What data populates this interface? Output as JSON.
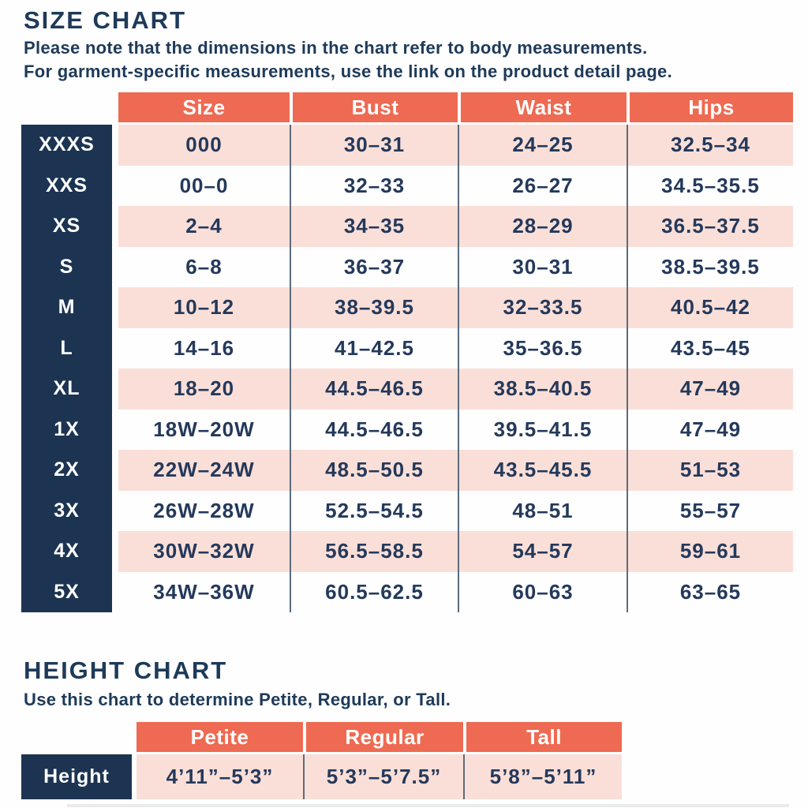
{
  "colors": {
    "navy": "#1C3452",
    "coral": "#EE6A52",
    "pink": "#FADFD8",
    "text_navy": "#24395B",
    "separator": "#5D6B7C"
  },
  "size_chart": {
    "title": "SIZE CHART",
    "subtitle_line1": "Please note that the dimensions in the chart refer to body measurements.",
    "subtitle_line2": "For garment-specific measurements, use the link on the product detail page.",
    "columns": [
      "Size",
      "Bust",
      "Waist",
      "Hips"
    ],
    "rows": [
      {
        "label": "XXXS",
        "values": [
          "000",
          "30–31",
          "24–25",
          "32.5–34"
        ]
      },
      {
        "label": "XXS",
        "values": [
          "00–0",
          "32–33",
          "26–27",
          "34.5–35.5"
        ]
      },
      {
        "label": "XS",
        "values": [
          "2–4",
          "34–35",
          "28–29",
          "36.5–37.5"
        ]
      },
      {
        "label": "S",
        "values": [
          "6–8",
          "36–37",
          "30–31",
          "38.5–39.5"
        ]
      },
      {
        "label": "M",
        "values": [
          "10–12",
          "38–39.5",
          "32–33.5",
          "40.5–42"
        ]
      },
      {
        "label": "L",
        "values": [
          "14–16",
          "41–42.5",
          "35–36.5",
          "43.5–45"
        ]
      },
      {
        "label": "XL",
        "values": [
          "18–20",
          "44.5–46.5",
          "38.5–40.5",
          "47–49"
        ]
      },
      {
        "label": "1X",
        "values": [
          "18W–20W",
          "44.5–46.5",
          "39.5–41.5",
          "47–49"
        ]
      },
      {
        "label": "2X",
        "values": [
          "22W–24W",
          "48.5–50.5",
          "43.5–45.5",
          "51–53"
        ]
      },
      {
        "label": "3X",
        "values": [
          "26W–28W",
          "52.5–54.5",
          "48–51",
          "55–57"
        ]
      },
      {
        "label": "4X",
        "values": [
          "30W–32W",
          "56.5–58.5",
          "54–57",
          "59–61"
        ]
      },
      {
        "label": "5X",
        "values": [
          "34W–36W",
          "60.5–62.5",
          "60–63",
          "63–65"
        ]
      }
    ]
  },
  "height_chart": {
    "title": "HEIGHT CHART",
    "subtitle": "Use this chart to determine Petite, Regular, or Tall.",
    "columns": [
      "Petite",
      "Regular",
      "Tall"
    ],
    "row_label": "Height",
    "values": [
      "4’11”–5’3”",
      "5’3”–5’7.5”",
      "5’8”–5’11”"
    ]
  }
}
